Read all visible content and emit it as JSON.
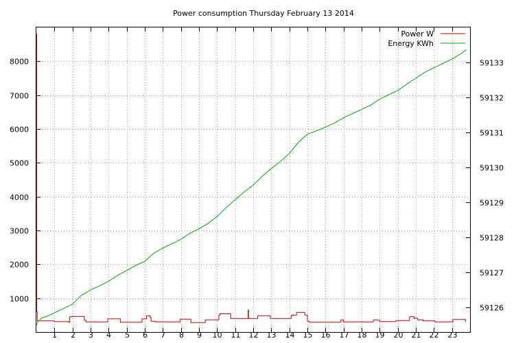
{
  "chart_data": {
    "type": "line",
    "title": "Power consumption Thursday February 13 2014",
    "xlabel": "",
    "ylabel": "",
    "y2label": "",
    "xlim": [
      0,
      24
    ],
    "ylim": [
      0,
      9000
    ],
    "y2lim": [
      59125.3,
      59134.0
    ],
    "x_ticks": [
      1,
      2,
      3,
      4,
      5,
      6,
      7,
      8,
      9,
      10,
      11,
      12,
      13,
      14,
      15,
      16,
      17,
      18,
      19,
      20,
      21,
      22,
      23
    ],
    "y_ticks": [
      1000,
      2000,
      3000,
      4000,
      5000,
      6000,
      7000,
      8000
    ],
    "y2_ticks": [
      59126,
      59127,
      59128,
      59129,
      59130,
      59131,
      59132,
      59133
    ],
    "grid": true,
    "legend_position": "top-right",
    "series": [
      {
        "name": "Power W",
        "axis": "left",
        "color": "#cc0000",
        "x": [
          0,
          0.02,
          0.05,
          0.5,
          1.0,
          1.5,
          1.8,
          1.85,
          2.0,
          2.6,
          2.65,
          2.75,
          3.0,
          3.9,
          3.95,
          4.6,
          4.65,
          4.9,
          5.8,
          5.85,
          6.0,
          6.1,
          6.3,
          6.35,
          6.6,
          7.5,
          7.9,
          7.95,
          8.5,
          8.55,
          9.0,
          9.3,
          9.35,
          10.0,
          10.1,
          10.15,
          10.7,
          10.75,
          11.0,
          11.7,
          11.72,
          11.74,
          12.0,
          12.2,
          12.25,
          12.9,
          12.95,
          14.0,
          14.1,
          14.15,
          14.35,
          14.4,
          14.8,
          14.85,
          15.0,
          15.1,
          16.0,
          16.8,
          16.85,
          17.0,
          18.6,
          18.65,
          18.9,
          19.0,
          19.5,
          19.9,
          20.6,
          20.65,
          20.9,
          20.95,
          21.1,
          21.4,
          22.0,
          22.05,
          22.5,
          23.0,
          23.05,
          23.7,
          23.75
        ],
        "y": [
          8800,
          600,
          330,
          330,
          310,
          310,
          290,
          450,
          460,
          460,
          350,
          300,
          300,
          300,
          390,
          390,
          290,
          290,
          290,
          390,
          390,
          480,
          430,
          320,
          300,
          300,
          300,
          380,
          380,
          280,
          280,
          280,
          360,
          360,
          500,
          540,
          540,
          400,
          400,
          400,
          650,
          400,
          400,
          400,
          480,
          480,
          400,
          400,
          480,
          500,
          500,
          580,
          580,
          500,
          320,
          290,
          290,
          290,
          360,
          300,
          300,
          360,
          350,
          310,
          310,
          340,
          340,
          450,
          400,
          410,
          360,
          330,
          330,
          300,
          300,
          300,
          370,
          370,
          300
        ]
      },
      {
        "name": "Energy KWh",
        "axis": "right",
        "color": "#00aa00",
        "x": [
          0,
          0.1,
          0.3,
          0.6,
          1,
          1.5,
          2,
          2.5,
          3,
          3.5,
          4,
          4.5,
          5,
          5.5,
          6,
          6.5,
          7,
          7.5,
          8,
          8.5,
          9,
          9.5,
          10,
          10.5,
          11,
          11.5,
          12,
          12.5,
          13,
          13.5,
          14,
          14.5,
          15,
          15.5,
          16,
          16.5,
          17,
          17.5,
          18,
          18.5,
          19,
          19.5,
          20,
          20.5,
          21,
          21.5,
          22,
          22.5,
          23,
          23.5,
          23.8
        ],
        "y": [
          59125.5,
          59125.6,
          59125.7,
          59125.75,
          59125.85,
          59125.97,
          59126.1,
          59126.35,
          59126.5,
          59126.62,
          59126.75,
          59126.92,
          59127.06,
          59127.2,
          59127.32,
          59127.55,
          59127.7,
          59127.82,
          59127.95,
          59128.12,
          59128.25,
          59128.4,
          59128.6,
          59128.85,
          59129.08,
          59129.3,
          59129.5,
          59129.75,
          59129.97,
          59130.17,
          59130.4,
          59130.72,
          59130.95,
          59131.05,
          59131.15,
          59131.27,
          59131.42,
          59131.54,
          59131.66,
          59131.78,
          59131.95,
          59132.08,
          59132.2,
          59132.38,
          59132.55,
          59132.72,
          59132.85,
          59132.97,
          59133.1,
          59133.25,
          59133.37
        ]
      }
    ]
  }
}
